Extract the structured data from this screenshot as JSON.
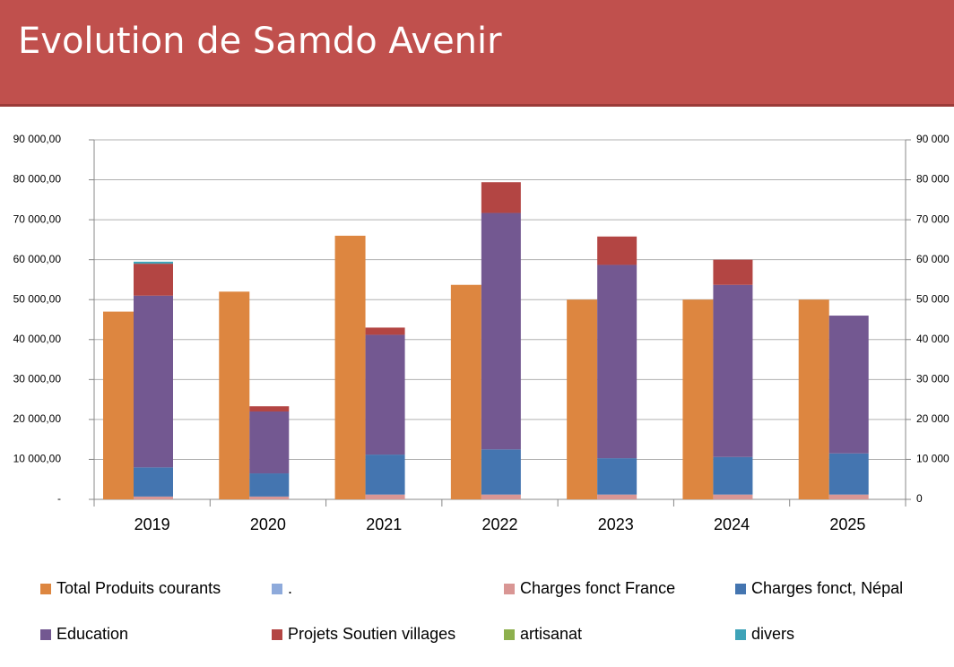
{
  "chart_data": {
    "type": "bar",
    "title": "Evolution de Samdo Avenir",
    "categories": [
      "2019",
      "2020",
      "2021",
      "2022",
      "2023",
      "2024",
      "2025"
    ],
    "series": [
      {
        "name": "Total Produits courants",
        "color": "#dd8640",
        "stack": 0,
        "values": [
          47000,
          52000,
          66000,
          53700,
          50000,
          50000,
          50000
        ]
      },
      {
        "name": ".",
        "color": "#8eaadb",
        "stack": 1,
        "values": [
          0,
          0,
          0,
          0,
          0,
          0,
          0
        ]
      },
      {
        "name": "Charges fonct France",
        "color": "#d99694",
        "stack": 1,
        "values": [
          700,
          700,
          1200,
          1200,
          1200,
          1200,
          1200
        ]
      },
      {
        "name": "Charges fonct, Népal",
        "color": "#4475b0",
        "stack": 1,
        "values": [
          7300,
          5800,
          10000,
          11300,
          9100,
          9400,
          10300
        ]
      },
      {
        "name": "Education",
        "color": "#735891",
        "stack": 1,
        "values": [
          43000,
          15500,
          30000,
          59200,
          48400,
          43100,
          34500
        ]
      },
      {
        "name": "Projets Soutien villages",
        "color": "#b34543",
        "stack": 1,
        "values": [
          8000,
          1300,
          1800,
          7700,
          7100,
          6300,
          0
        ]
      },
      {
        "name": "artisanat",
        "color": "#8db04d",
        "stack": 1,
        "values": [
          0,
          0,
          0,
          0,
          0,
          0,
          0
        ]
      },
      {
        "name": "divers",
        "color": "#3ea3b8",
        "stack": 1,
        "values": [
          500,
          0,
          0,
          0,
          0,
          0,
          0
        ]
      }
    ],
    "ylim": [
      0,
      90000
    ],
    "yticks": [
      {
        "value": 0,
        "label": "-"
      },
      {
        "value": 10000,
        "label": "10 000,00"
      },
      {
        "value": 20000,
        "label": "20 000,00"
      },
      {
        "value": 30000,
        "label": "30 000,00"
      },
      {
        "value": 40000,
        "label": "40 000,00"
      },
      {
        "value": 50000,
        "label": "50 000,00"
      },
      {
        "value": 60000,
        "label": "60 000,00"
      },
      {
        "value": 70000,
        "label": "70 000,00"
      },
      {
        "value": 80000,
        "label": "80 000,00"
      },
      {
        "value": 90000,
        "label": "90 000,00"
      }
    ],
    "y2lim": [
      0,
      90000
    ],
    "y2ticks": [
      0,
      {
        "value": 10000,
        "label": "10 000"
      },
      {
        "value": 20000,
        "label": "20 000"
      },
      {
        "value": 30000,
        "label": "30 000"
      },
      {
        "value": 40000,
        "label": "40 000"
      },
      {
        "value": 50000,
        "label": "50 000"
      },
      {
        "value": 60000,
        "label": "60 000"
      },
      {
        "value": 70000,
        "label": "70 000"
      },
      {
        "value": 80000,
        "label": "80 000"
      },
      {
        "value": 90000,
        "label": "90 000"
      }
    ],
    "grid": true,
    "legend": "bottom"
  }
}
